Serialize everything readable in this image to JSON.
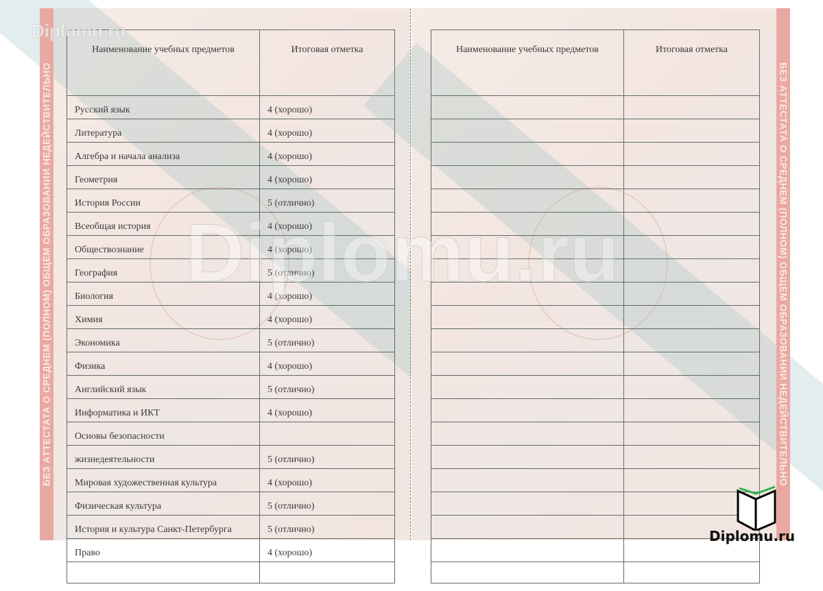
{
  "security_strip_text": "БЕЗ АТТЕСТАТА О СРЕДНЕМ (ПОЛНОМ) ОБЩЕМ ОБРАЗОВАНИИ НЕДЕЙСТВИТЕЛЬНО",
  "watermark": "Diplomu.ru",
  "logo_text": "Diplomu.ru",
  "left_table": {
    "headers": [
      "Наименование учебных предметов",
      "Итоговая отметка"
    ],
    "rows": [
      [
        "Русский язык",
        "4 (хорошо)"
      ],
      [
        "Литература",
        "4 (хорошо)"
      ],
      [
        "Алгебра и начала анализа",
        "4 (хорошо)"
      ],
      [
        "Геометрия",
        "4 (хорошо)"
      ],
      [
        "История России",
        "5 (отлично)"
      ],
      [
        "Всеобщая история",
        "4 (хорошо)"
      ],
      [
        "Обществознание",
        "4 (хорошо)"
      ],
      [
        "География",
        "5 (отлично)"
      ],
      [
        "Биология",
        "4 (хорошо)"
      ],
      [
        "Химия",
        "4 (хорошо)"
      ],
      [
        "Экономика",
        "5 (отлично)"
      ],
      [
        "Физика",
        "4 (хорошо)"
      ],
      [
        "Английский язык",
        "5 (отлично)"
      ],
      [
        "Информатика и ИКТ",
        "4 (хорошо)"
      ],
      [
        "Основы безопасности",
        ""
      ],
      [
        "жизнедеятельности",
        "5 (отлично)"
      ],
      [
        "Мировая художественная культура",
        "4 (хорошо)"
      ],
      [
        "Физическая культура",
        "5 (отлично)"
      ],
      [
        "История и культура Санкт-Петербурга",
        "5 (отлично)"
      ],
      [
        "Право",
        "4 (хорошо)"
      ],
      [
        "",
        ""
      ]
    ]
  },
  "right_table": {
    "headers": [
      "Наименование учебных предметов",
      "Итоговая отметка"
    ],
    "empty_rows": 21
  },
  "colors": {
    "strip": "#e9a9a2",
    "paper": "#f4e8e3",
    "logo_accent": "#2db34a"
  }
}
